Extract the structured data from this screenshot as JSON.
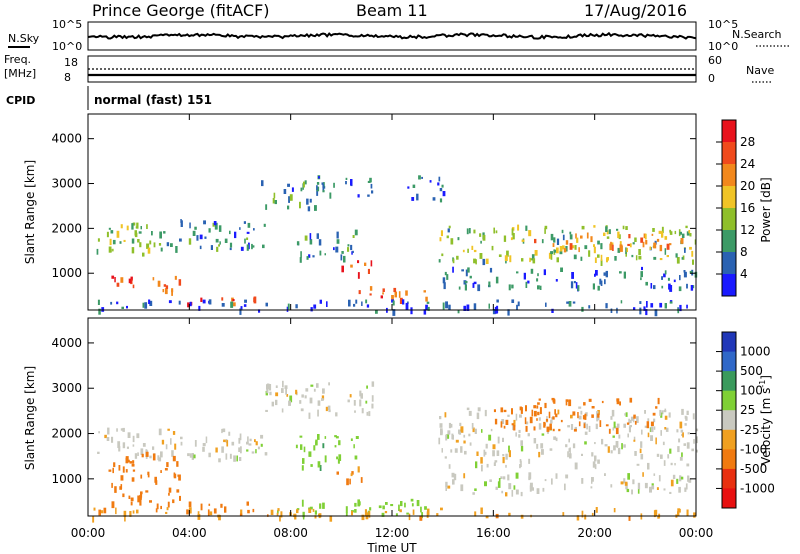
{
  "header": {
    "station": "Prince George (fitACF)",
    "beam": "Beam 11",
    "date": "17/Aug/2016"
  },
  "nsky_panel": {
    "left_label": "N.Sky",
    "left_ticks": [
      "10^5",
      "10^0"
    ],
    "right_ticks": [
      "10^5",
      "10^0"
    ],
    "right_label": "N.Search"
  },
  "freq_panel": {
    "left_label_1": "Freq.",
    "left_label_2": "[MHz]",
    "left_ticks": [
      "18",
      "8"
    ],
    "right_ticks": [
      "60",
      "0"
    ],
    "right_label": "Nave"
  },
  "cpid": {
    "label": "CPID",
    "value": "normal (fast) 151"
  },
  "chart_data": [
    {
      "type": "heatmap",
      "panel": "power",
      "ylabel": "Slant Range [km]",
      "xlabel": "",
      "ylim": [
        180,
        4550
      ],
      "xlim": [
        0,
        24
      ],
      "yticks": [
        1000,
        2000,
        3000,
        4000
      ],
      "xticks": [
        "00:00",
        "04:00",
        "08:00",
        "12:00",
        "16:00",
        "20:00",
        "00:00"
      ],
      "colorbar": {
        "label": "Power [dB]",
        "ticks": [
          "28",
          "24",
          "20",
          "16",
          "12",
          "8",
          "4"
        ],
        "colors": [
          "#e8121c",
          "#f04a1c",
          "#f2881c",
          "#f0c426",
          "#8fbf2a",
          "#3c9a66",
          "#2a62b2",
          "#1a1aff"
        ]
      },
      "regions": [
        {
          "t0": 0.0,
          "t1": 3.5,
          "r0": 1450,
          "r1": 2150,
          "value": 12
        },
        {
          "t0": 0.8,
          "t1": 3.6,
          "r0": 560,
          "r1": 950,
          "value": 24
        },
        {
          "t0": 3.9,
          "t1": 6.6,
          "r0": 330,
          "r1": 520,
          "value": 24
        },
        {
          "t0": 3.5,
          "t1": 7.0,
          "r0": 1550,
          "r1": 2250,
          "value": 8
        },
        {
          "t0": 6.8,
          "t1": 9.3,
          "r0": 2450,
          "r1": 3100,
          "value": 8
        },
        {
          "t0": 9.0,
          "t1": 11.3,
          "r0": 2750,
          "r1": 3200,
          "value": 6
        },
        {
          "t0": 8.2,
          "t1": 10.6,
          "r0": 1300,
          "r1": 2000,
          "value": 8
        },
        {
          "t0": 9.8,
          "t1": 11.2,
          "r0": 1000,
          "r1": 1300,
          "value": 26
        },
        {
          "t0": 10.5,
          "t1": 13.5,
          "r0": 450,
          "r1": 720,
          "value": 22
        },
        {
          "t0": 12.6,
          "t1": 14.1,
          "r0": 2650,
          "r1": 3200,
          "value": 6
        },
        {
          "t0": 13.8,
          "t1": 24.0,
          "r0": 1300,
          "r1": 2100,
          "value": 12
        },
        {
          "t0": 17.0,
          "t1": 23.8,
          "r0": 1550,
          "r1": 1950,
          "value": 20
        },
        {
          "t0": 14.0,
          "t1": 24.0,
          "r0": 700,
          "r1": 1150,
          "value": 6
        },
        {
          "t0": 0.0,
          "t1": 24.0,
          "r0": 180,
          "r1": 420,
          "value": 4
        }
      ]
    },
    {
      "type": "heatmap",
      "panel": "velocity",
      "ylabel": "Slant Range [km]",
      "xlabel": "Time UT",
      "ylim": [
        180,
        4550
      ],
      "xlim": [
        0,
        24
      ],
      "yticks": [
        1000,
        2000,
        3000,
        4000
      ],
      "xticks": [
        "00:00",
        "04:00",
        "08:00",
        "12:00",
        "16:00",
        "20:00",
        "00:00"
      ],
      "colorbar": {
        "label": "Velocity [m s^-1]",
        "ticks": [
          "1000",
          "500",
          "100",
          "25",
          "-25",
          "-100",
          "-500",
          "-1000"
        ],
        "colors": [
          "#2037b8",
          "#3068c8",
          "#3a9a5c",
          "#7fd035",
          "#c9c9c0",
          "#f0a020",
          "#f07a10",
          "#e83010",
          "#e81010"
        ]
      },
      "regions": [
        {
          "t0": 0.0,
          "t1": 7.0,
          "r0": 1450,
          "r1": 2150,
          "value": 0
        },
        {
          "t0": 0.8,
          "t1": 3.6,
          "r0": 400,
          "r1": 1600,
          "value": -300
        },
        {
          "t0": 3.9,
          "t1": 6.6,
          "r0": 300,
          "r1": 520,
          "value": -200
        },
        {
          "t0": 6.8,
          "t1": 11.3,
          "r0": 2450,
          "r1": 3200,
          "value": 0
        },
        {
          "t0": 8.2,
          "t1": 10.6,
          "r0": 1300,
          "r1": 2000,
          "value": 80
        },
        {
          "t0": 9.8,
          "t1": 11.2,
          "r0": 1000,
          "r1": 1300,
          "value": -120
        },
        {
          "t0": 7.0,
          "t1": 13.5,
          "r0": 230,
          "r1": 560,
          "value": 60
        },
        {
          "t0": 13.8,
          "t1": 24.0,
          "r0": 1300,
          "r1": 2600,
          "value": 0
        },
        {
          "t0": 16.0,
          "t1": 22.5,
          "r0": 2100,
          "r1": 2800,
          "value": -150
        },
        {
          "t0": 14.0,
          "t1": 24.0,
          "r0": 700,
          "r1": 1150,
          "value": 0
        },
        {
          "t0": 0.0,
          "t1": 24.0,
          "r0": 180,
          "r1": 380,
          "value": -80
        }
      ]
    }
  ]
}
